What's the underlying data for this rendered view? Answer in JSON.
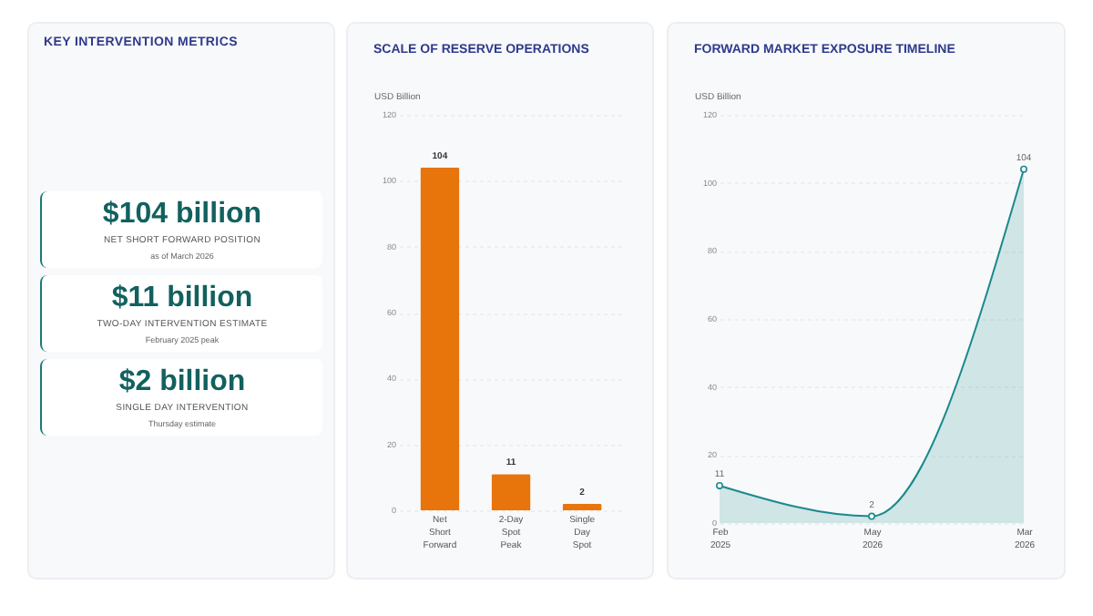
{
  "chart_data": [
    {
      "type": "other",
      "title": "KEY INTERVENTION METRICS",
      "annotations": [
        "$104 billion",
        "NET SHORT FORWARD POSITION",
        "as of March 2026",
        "$11 billion",
        "TWO-DAY INTERVENTION ESTIMATE",
        "February 2025 peak",
        "$2 billion",
        "SINGLE DAY INTERVENTION",
        "Thursday estimate"
      ]
    },
    {
      "type": "bar",
      "title": "SCALE OF RESERVE OPERATIONS",
      "ylabel": "USD Billion",
      "categories": [
        "Net Short Forward",
        "2-Day Spot Peak",
        "Single Day Spot"
      ],
      "values": [
        104,
        11,
        2
      ],
      "color": "#e8740c",
      "ylim": [
        0,
        120
      ],
      "yticks": [
        0,
        20,
        40,
        60,
        80,
        100,
        120
      ],
      "grid": "y",
      "data_labels": true
    },
    {
      "type": "area",
      "title": "FORWARD MARKET EXPOSURE TIMELINE",
      "ylabel": "USD Billion",
      "categories": [
        "Feb 2025",
        "May 2026",
        "Mar 2026"
      ],
      "series": [
        {
          "color": "#1a8a8c",
          "values": [
            11,
            2,
            104
          ]
        }
      ],
      "ylim": [
        0,
        120
      ],
      "yticks": [
        0,
        20,
        40,
        60,
        80,
        100,
        120
      ],
      "grid": "y",
      "marker": "circle",
      "data_labels": true
    }
  ]
}
